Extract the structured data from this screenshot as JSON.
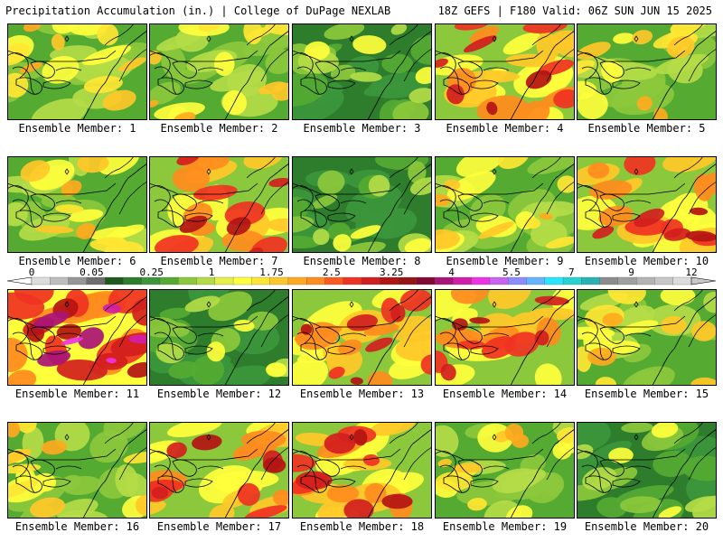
{
  "header": {
    "title_left": "Precipitation Accumulation (in.) | College of DuPage NEXLAB",
    "title_right": "18Z GEFS | F180 Valid: 06Z SUN JUN 15 2025"
  },
  "members": [
    {
      "label": "Ensemble Member: 1",
      "id": 1
    },
    {
      "label": "Ensemble Member: 2",
      "id": 2
    },
    {
      "label": "Ensemble Member: 3",
      "id": 3
    },
    {
      "label": "Ensemble Member: 4",
      "id": 4
    },
    {
      "label": "Ensemble Member: 5",
      "id": 5
    },
    {
      "label": "Ensemble Member: 6",
      "id": 6
    },
    {
      "label": "Ensemble Member: 7",
      "id": 7
    },
    {
      "label": "Ensemble Member: 8",
      "id": 8
    },
    {
      "label": "Ensemble Member: 9",
      "id": 9
    },
    {
      "label": "Ensemble Member: 10",
      "id": 10
    },
    {
      "label": "Ensemble Member: 11",
      "id": 11
    },
    {
      "label": "Ensemble Member: 12",
      "id": 12
    },
    {
      "label": "Ensemble Member: 13",
      "id": 13
    },
    {
      "label": "Ensemble Member: 14",
      "id": 14
    },
    {
      "label": "Ensemble Member: 15",
      "id": 15
    },
    {
      "label": "Ensemble Member: 16",
      "id": 16
    },
    {
      "label": "Ensemble Member: 17",
      "id": 17
    },
    {
      "label": "Ensemble Member: 18",
      "id": 18
    },
    {
      "label": "Ensemble Member: 19",
      "id": 19
    },
    {
      "label": "Ensemble Member: 20",
      "id": 20
    }
  ],
  "colorbar": {
    "tick_labels": [
      "0",
      "0.05",
      "0.25",
      "1",
      "1.75",
      "2.5",
      "3.25",
      "4",
      "5.5",
      "7",
      "9",
      "12"
    ],
    "colors": [
      "#dcdcdc",
      "#bebebe",
      "#969696",
      "#6e6e6e",
      "#1e5a1e",
      "#2d7d2d",
      "#3c963c",
      "#55aa32",
      "#8cc83c",
      "#b4dc46",
      "#e6f046",
      "#ffff3c",
      "#ffe632",
      "#ffc828",
      "#ffaa1e",
      "#ff8c1e",
      "#ff5a1e",
      "#f03223",
      "#d21e1e",
      "#b41414",
      "#961414",
      "#820a32",
      "#aa1478",
      "#d21eaa",
      "#f032e6",
      "#c864f0",
      "#8c8cff",
      "#64b4ff",
      "#28e6ff",
      "#28d2d2",
      "#28b4b4",
      "#8c8c8c",
      "#a0a0a0",
      "#b4b4b4",
      "#c8c8c8",
      "#dcdcdc"
    ]
  },
  "intensity_by_member": {
    "1": "moderate",
    "2": "moderate",
    "3": "low",
    "4": "high",
    "5": "moderate",
    "6": "moderate",
    "7": "high",
    "8": "low",
    "9": "moderate",
    "10": "high",
    "11": "very-high",
    "12": "low",
    "13": "high",
    "14": "high",
    "15": "moderate",
    "16": "moderate",
    "17": "high",
    "18": "high",
    "19": "moderate",
    "20": "low"
  }
}
